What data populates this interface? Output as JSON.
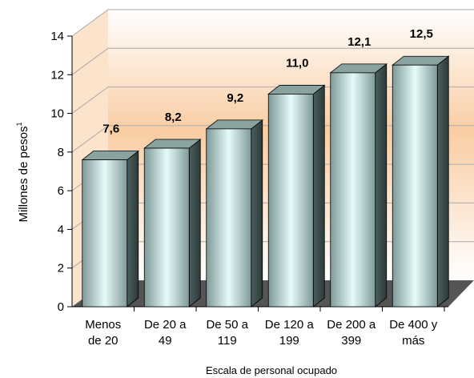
{
  "chart_data": {
    "type": "bar",
    "categories": [
      [
        "Menos",
        "de 20"
      ],
      [
        "De 20 a",
        "49"
      ],
      [
        "De 50 a",
        "119"
      ],
      [
        "De 120 a",
        "199"
      ],
      [
        "De 200 a",
        "399"
      ],
      [
        "De 400 y",
        "más"
      ]
    ],
    "values": [
      7.6,
      8.2,
      9.2,
      11.0,
      12.1,
      12.5
    ],
    "data_labels": [
      "7,6",
      "8,2",
      "9,2",
      "11,0",
      "12,1",
      "12,5"
    ],
    "ylabel": "Millones de pesos",
    "ylabel_superscript": "1",
    "xlabel": "Escala de personal ocupado",
    "ylim": [
      0,
      14
    ],
    "yticks": [
      0,
      2,
      4,
      6,
      8,
      10,
      12,
      14
    ],
    "grid": true,
    "style": "3d",
    "colors": {
      "bar_front_edge": "#8fa9a8",
      "bar_front_center": "#e6fbfa",
      "bar_side": "#3b4f4d",
      "bar_top": "#8aa3a1",
      "back_wall_top": "#ffffff",
      "back_wall_mid": "#f8c89a",
      "floor": "#555555",
      "grid": "#aaaaaa"
    }
  }
}
